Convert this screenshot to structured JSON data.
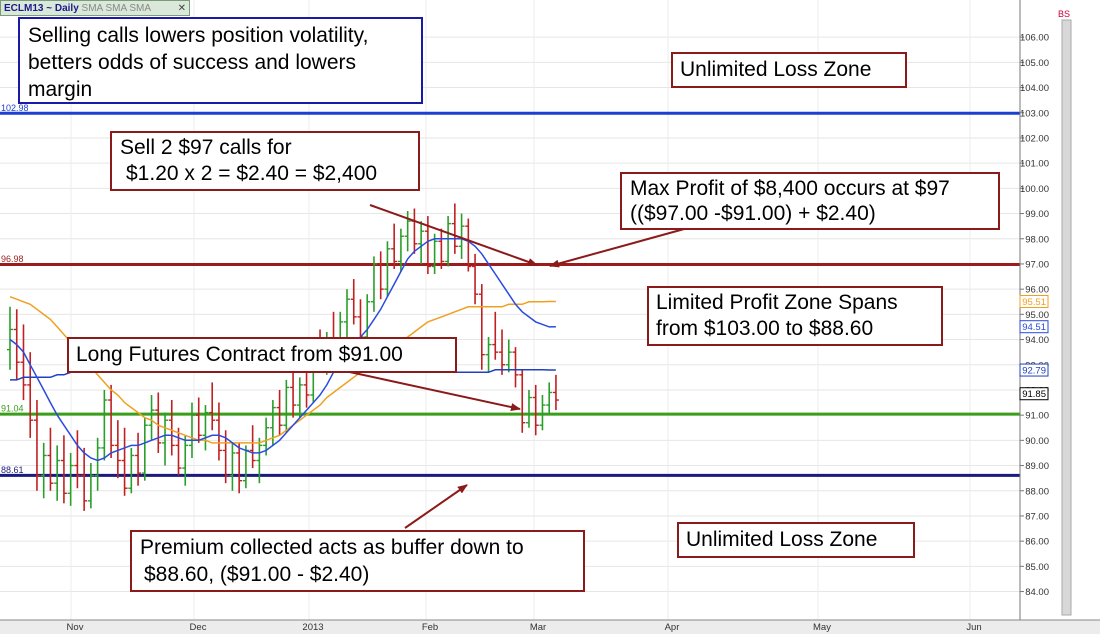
{
  "header": {
    "symbol": "ECLM13 ~ Daily",
    "indicators": "SMA SMA SMA",
    "close_glyph": "✕",
    "corner_label": "BS"
  },
  "annotations": {
    "selling_calls": "Selling calls lowers position volatility, betters odds of success and lowers margin",
    "sell_calls_line1": "Sell 2 $97 calls for",
    "sell_calls_line2": "$1.20 x 2 = $2.40 = $2,400",
    "unlimited_loss_top": "Unlimited Loss Zone",
    "max_profit_line1": "Max Profit of $8,400 occurs at $97",
    "max_profit_line2": "(($97.00 -$91.00) + $2.40)",
    "limited_profit_line1": "Limited Profit Zone Spans",
    "limited_profit_line2": "from $103.00 to $88.60",
    "long_futures": "Long Futures Contract from $91.00",
    "premium_line1": "Premium collected acts as buffer down to",
    "premium_line2": "$88.60, ($91.00 - $2.40)",
    "unlimited_loss_bottom": "Unlimited Loss Zone"
  },
  "colors": {
    "blue_level": "#1a3fd1",
    "red_level": "#9b1c1c",
    "green_level": "#3a9e1a",
    "navy_level": "#1a1a80",
    "sma_short": "#2a4be0",
    "sma_long": "#f0a020",
    "sma_mid": "#2040c0",
    "bar_up": "#2a9e2a",
    "bar_down": "#c02020"
  },
  "chart_data": {
    "type": "ohlc_bar",
    "ylim": [
      83.5,
      107.5
    ],
    "y_ticks": [
      "106.00",
      "105.00",
      "104.00",
      "103.00",
      "102.00",
      "101.00",
      "100.00",
      "99.00",
      "98.00",
      "97.00",
      "96.00",
      "95.00",
      "94.00",
      "93.00",
      "92.00",
      "91.00",
      "90.00",
      "89.00",
      "88.00",
      "87.00",
      "86.00",
      "85.00",
      "84.00"
    ],
    "x_labels": [
      "Nov",
      "Dec",
      "2013",
      "Feb",
      "Mar",
      "Apr",
      "May",
      "Jun"
    ],
    "horizontal_levels": [
      {
        "label": "102.98",
        "value": 102.98,
        "color_key": "blue_level"
      },
      {
        "label": "96.98",
        "value": 96.98,
        "color_key": "red_level"
      },
      {
        "label": "91.04",
        "value": 91.04,
        "color_key": "green_level"
      },
      {
        "label": "88.61",
        "value": 88.61,
        "color_key": "navy_level"
      }
    ],
    "price_tags": [
      {
        "label": "95.51",
        "value": 95.51,
        "color": "#f0a020"
      },
      {
        "label": "94.51",
        "value": 94.51,
        "color": "#2a4be0"
      },
      {
        "label": "92.79",
        "value": 92.79,
        "color": "#2040c0"
      },
      {
        "label": "91.85",
        "value": 91.85,
        "color": "#000000"
      }
    ],
    "bars": [
      [
        93.6,
        95.3,
        92.8,
        94.4
      ],
      [
        94.4,
        95.2,
        92.4,
        93.1
      ],
      [
        93.1,
        94.6,
        91.6,
        92.2
      ],
      [
        92.2,
        93.5,
        90.1,
        90.8
      ],
      [
        90.8,
        91.6,
        88.0,
        88.6
      ],
      [
        88.6,
        89.9,
        87.7,
        89.4
      ],
      [
        89.4,
        90.5,
        88.0,
        88.3
      ],
      [
        88.3,
        89.8,
        87.6,
        89.2
      ],
      [
        89.2,
        90.2,
        87.5,
        87.9
      ],
      [
        87.9,
        89.5,
        87.4,
        89.0
      ],
      [
        89.0,
        90.4,
        88.1,
        88.6
      ],
      [
        88.6,
        89.7,
        87.2,
        87.6
      ],
      [
        87.6,
        89.1,
        87.3,
        88.6
      ],
      [
        88.6,
        90.1,
        88.0,
        89.7
      ],
      [
        89.7,
        92.0,
        89.2,
        91.6
      ],
      [
        91.6,
        92.2,
        89.3,
        89.8
      ],
      [
        89.8,
        90.8,
        88.5,
        89.2
      ],
      [
        89.2,
        90.5,
        87.8,
        88.1
      ],
      [
        88.1,
        89.7,
        87.9,
        89.4
      ],
      [
        89.4,
        90.3,
        88.2,
        88.7
      ],
      [
        88.7,
        90.9,
        88.4,
        90.6
      ],
      [
        90.6,
        91.8,
        90.0,
        91.2
      ],
      [
        91.2,
        91.9,
        89.5,
        89.9
      ],
      [
        89.9,
        91.1,
        89.0,
        90.8
      ],
      [
        90.8,
        91.6,
        89.4,
        89.8
      ],
      [
        89.8,
        90.5,
        88.6,
        88.9
      ],
      [
        88.9,
        90.2,
        88.2,
        89.8
      ],
      [
        89.8,
        91.5,
        89.3,
        91.0
      ],
      [
        91.0,
        91.7,
        89.9,
        90.2
      ],
      [
        90.2,
        91.4,
        89.6,
        91.1
      ],
      [
        91.1,
        92.3,
        90.4,
        90.8
      ],
      [
        90.8,
        91.5,
        89.2,
        89.6
      ],
      [
        89.6,
        90.4,
        88.3,
        88.6
      ],
      [
        88.6,
        89.9,
        88.0,
        89.5
      ],
      [
        89.5,
        89.9,
        87.9,
        88.4
      ],
      [
        88.4,
        89.8,
        88.1,
        89.6
      ],
      [
        89.6,
        90.6,
        88.9,
        89.2
      ],
      [
        89.2,
        90.1,
        88.3,
        89.8
      ],
      [
        89.8,
        90.9,
        89.4,
        90.5
      ],
      [
        90.5,
        91.6,
        89.8,
        91.3
      ],
      [
        91.3,
        92.0,
        90.2,
        90.6
      ],
      [
        90.6,
        92.4,
        90.3,
        92.1
      ],
      [
        92.1,
        92.7,
        90.9,
        91.4
      ],
      [
        91.4,
        92.5,
        90.9,
        92.2
      ],
      [
        92.2,
        93.0,
        91.3,
        91.8
      ],
      [
        91.8,
        93.9,
        91.5,
        93.6
      ],
      [
        93.6,
        94.4,
        92.7,
        93.3
      ],
      [
        93.3,
        94.3,
        92.6,
        94.0
      ],
      [
        94.0,
        95.1,
        93.3,
        93.8
      ],
      [
        93.8,
        95.1,
        93.1,
        94.7
      ],
      [
        94.7,
        96.0,
        94.1,
        95.6
      ],
      [
        95.6,
        96.4,
        94.6,
        94.9
      ],
      [
        94.9,
        95.6,
        93.6,
        94.1
      ],
      [
        94.1,
        95.8,
        93.8,
        95.5
      ],
      [
        95.5,
        97.3,
        95.1,
        97.0
      ],
      [
        97.0,
        97.5,
        95.6,
        96.0
      ],
      [
        96.0,
        97.9,
        95.7,
        97.6
      ],
      [
        97.6,
        98.6,
        96.8,
        97.1
      ],
      [
        97.1,
        98.4,
        96.7,
        98.1
      ],
      [
        98.1,
        99.1,
        97.5,
        98.7
      ],
      [
        98.7,
        99.2,
        97.4,
        97.8
      ],
      [
        97.8,
        98.7,
        97.0,
        98.3
      ],
      [
        98.3,
        98.9,
        96.6,
        96.9
      ],
      [
        96.9,
        98.2,
        96.6,
        97.9
      ],
      [
        97.9,
        98.4,
        96.8,
        97.1
      ],
      [
        97.1,
        98.9,
        96.9,
        98.6
      ],
      [
        98.6,
        99.4,
        97.4,
        97.7
      ],
      [
        97.7,
        99.0,
        97.2,
        98.5
      ],
      [
        98.5,
        98.8,
        96.7,
        96.9
      ],
      [
        96.9,
        97.4,
        95.4,
        95.8
      ],
      [
        95.8,
        96.2,
        92.8,
        93.4
      ],
      [
        93.4,
        94.1,
        92.7,
        93.8
      ],
      [
        93.8,
        95.1,
        93.2,
        93.5
      ],
      [
        93.5,
        94.4,
        92.6,
        93.0
      ],
      [
        93.0,
        94.0,
        92.7,
        93.5
      ],
      [
        93.5,
        93.7,
        92.1,
        92.6
      ],
      [
        92.6,
        92.8,
        90.3,
        90.7
      ],
      [
        90.7,
        92.0,
        90.5,
        91.7
      ],
      [
        91.7,
        92.2,
        90.2,
        90.6
      ],
      [
        90.6,
        91.8,
        90.4,
        91.4
      ],
      [
        91.4,
        92.3,
        91.0,
        91.9
      ],
      [
        91.9,
        92.6,
        91.2,
        91.6
      ]
    ],
    "sma_short": [
      94.0,
      93.8,
      93.5,
      93.0,
      92.5,
      92.0,
      91.5,
      91.0,
      90.6,
      90.2,
      89.8,
      89.5,
      89.3,
      89.2,
      89.3,
      89.5,
      89.6,
      89.7,
      89.8,
      89.8,
      89.9,
      90.0,
      90.1,
      90.2,
      90.2,
      90.1,
      90.0,
      90.0,
      90.0,
      90.1,
      90.2,
      90.2,
      90.1,
      89.9,
      89.7,
      89.6,
      89.5,
      89.5,
      89.6,
      89.8,
      90.0,
      90.3,
      90.6,
      90.9,
      91.2,
      91.5,
      91.8,
      92.2,
      92.7,
      93.1,
      93.5,
      93.8,
      94.1,
      94.4,
      94.8,
      95.2,
      95.7,
      96.2,
      96.7,
      97.2,
      97.5,
      97.7,
      97.9,
      98.0,
      98.0,
      98.0,
      98.0,
      98.0,
      97.9,
      97.7,
      97.4,
      97.0,
      96.6,
      96.2,
      95.8,
      95.4,
      95.1,
      94.9,
      94.7,
      94.6,
      94.5,
      94.51
    ],
    "sma_mid": [
      92.4,
      92.4,
      92.5,
      92.5,
      92.5,
      92.5,
      92.5,
      92.6,
      92.6,
      92.7,
      92.7,
      92.7,
      92.7,
      92.7,
      92.7,
      92.8,
      92.8,
      92.8,
      92.8,
      92.8,
      92.8,
      92.8,
      92.8,
      92.8,
      92.8,
      92.8,
      92.8,
      92.8,
      92.8,
      92.8,
      92.8,
      92.8,
      92.8,
      92.8,
      92.8,
      92.8,
      92.8,
      92.8,
      92.8,
      92.8,
      92.8,
      92.8,
      92.8,
      92.8,
      92.8,
      92.8,
      92.8,
      92.7,
      92.7,
      92.7,
      92.7,
      92.7,
      92.7,
      92.7,
      92.7,
      92.7,
      92.7,
      92.7,
      92.7,
      92.7,
      92.7,
      92.7,
      92.7,
      92.7,
      92.7,
      92.7,
      92.7,
      92.7,
      92.7,
      92.7,
      92.7,
      92.7,
      92.8,
      92.8,
      92.8,
      92.8,
      92.8,
      92.8,
      92.8,
      92.8,
      92.79,
      92.79
    ],
    "sma_long": [
      95.7,
      95.6,
      95.5,
      95.4,
      95.2,
      95.0,
      94.8,
      94.5,
      94.2,
      93.9,
      93.5,
      93.2,
      92.9,
      92.6,
      92.3,
      92.0,
      91.8,
      91.5,
      91.3,
      91.1,
      90.9,
      90.8,
      90.6,
      90.5,
      90.4,
      90.3,
      90.2,
      90.1,
      90.0,
      90.0,
      89.9,
      89.9,
      89.9,
      89.9,
      89.9,
      89.9,
      89.9,
      89.9,
      90.0,
      90.1,
      90.2,
      90.4,
      90.6,
      90.8,
      91.0,
      91.2,
      91.4,
      91.7,
      91.9,
      92.1,
      92.3,
      92.5,
      92.7,
      92.9,
      93.1,
      93.3,
      93.5,
      93.7,
      93.9,
      94.1,
      94.3,
      94.5,
      94.7,
      94.8,
      94.9,
      95.0,
      95.1,
      95.2,
      95.3,
      95.3,
      95.3,
      95.3,
      95.3,
      95.3,
      95.4,
      95.4,
      95.4,
      95.5,
      95.5,
      95.5,
      95.51,
      95.51
    ]
  }
}
